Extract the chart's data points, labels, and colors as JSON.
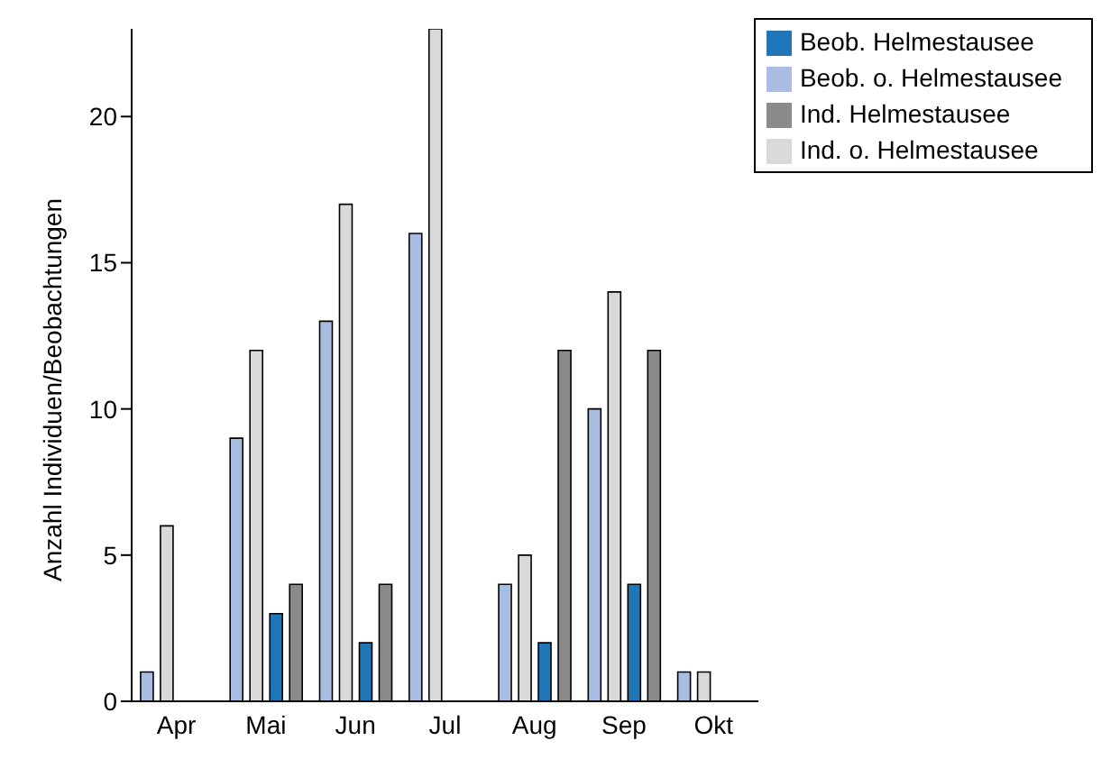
{
  "chart_data": {
    "type": "bar",
    "ylabel": "Anzahl Individuen/Beobachtungen",
    "categories": [
      "Apr",
      "Mai",
      "Jun",
      "Jul",
      "Aug",
      "Sep",
      "Okt"
    ],
    "series": [
      {
        "name": "Beob. o. Helmestausee",
        "color": "#a9bde3",
        "values": [
          1,
          9,
          13,
          16,
          4,
          10,
          1
        ]
      },
      {
        "name": "Ind. o. Helmestausee",
        "color": "#d9d9d9",
        "values": [
          6,
          12,
          17,
          23,
          5,
          14,
          1
        ]
      },
      {
        "name": "Beob. Helmestausee",
        "color": "#1f77b8",
        "values": [
          null,
          3,
          2,
          null,
          2,
          4,
          null
        ]
      },
      {
        "name": "Ind. Helmestausee",
        "color": "#8a8a8a",
        "values": [
          null,
          4,
          4,
          null,
          12,
          12,
          null
        ]
      }
    ],
    "ylim": [
      0,
      23
    ],
    "yticks": [
      0,
      5,
      10,
      15,
      20
    ],
    "grid": false,
    "legend": "top right"
  }
}
